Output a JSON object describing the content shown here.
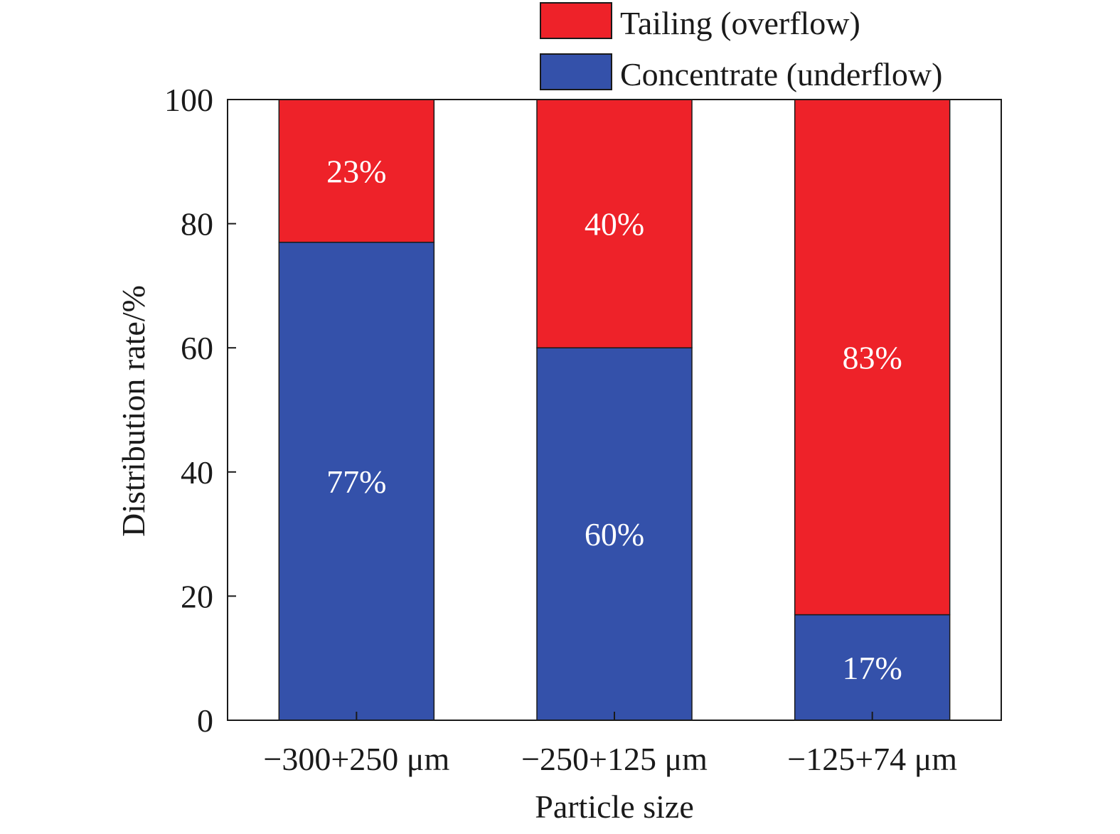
{
  "chart_data": {
    "type": "bar",
    "stacked": true,
    "categories": [
      "−300+250 μm",
      "−250+125 μm",
      "−125+74 μm"
    ],
    "series": [
      {
        "name": "Concentrate (underflow)",
        "values": [
          77,
          60,
          17
        ],
        "labels": [
          "77%",
          "60%",
          "17%"
        ],
        "color": "#3451aa"
      },
      {
        "name": "Tailing (overflow)",
        "values": [
          23,
          40,
          83
        ],
        "labels": [
          "23%",
          "40%",
          "83%"
        ],
        "color": "#ee2229"
      }
    ],
    "title": "",
    "xlabel": "Particle size",
    "ylabel": "Distribution rate/%",
    "ylim": [
      0,
      100
    ],
    "yticks": [
      "0",
      "20",
      "40",
      "60",
      "80",
      "100"
    ],
    "grid": false,
    "legend_position": "top-right"
  }
}
